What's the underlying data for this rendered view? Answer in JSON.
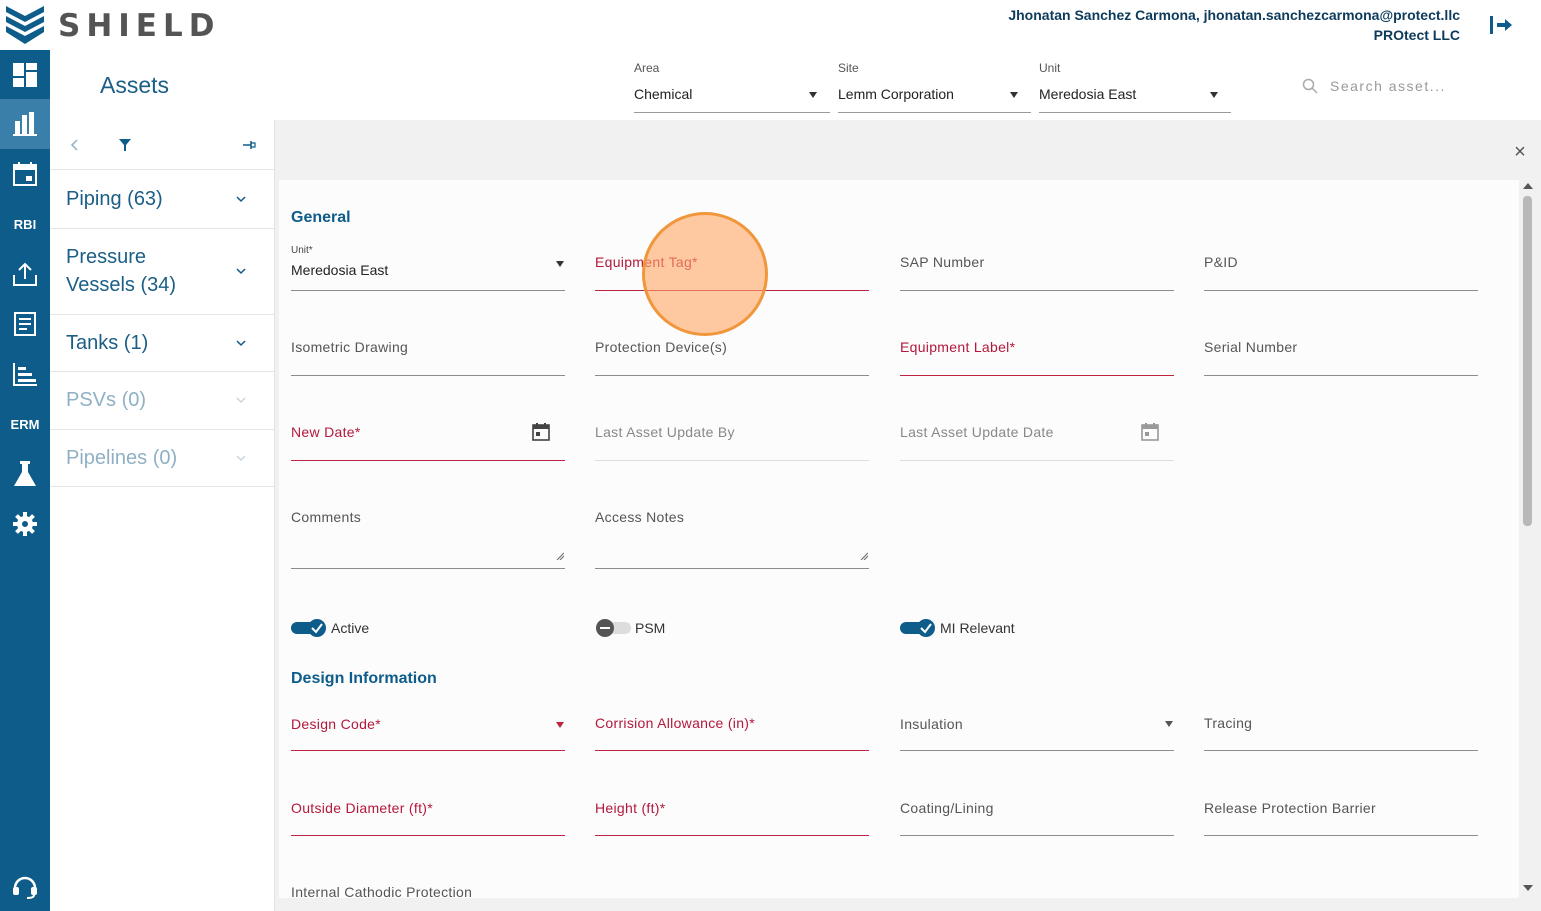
{
  "app": {
    "logo_text": "SHIELD"
  },
  "user": {
    "name_email": "Jhonatan Sanchez Carmona, jhonatan.sanchezcarmona@protect.llc",
    "company": "PROtect LLC"
  },
  "rail": {
    "items": [
      {
        "name": "dashboard-icon"
      },
      {
        "name": "assets-icon"
      },
      {
        "name": "calendar-icon"
      },
      {
        "label": "RBI"
      },
      {
        "name": "upload-icon"
      },
      {
        "name": "report-icon"
      },
      {
        "name": "chart-icon"
      },
      {
        "label": "ERM"
      },
      {
        "name": "lab-flask-icon"
      },
      {
        "name": "settings-gear-icon"
      },
      {
        "name": "support-headset-icon"
      }
    ]
  },
  "header": {
    "title": "Assets",
    "area": {
      "label": "Area",
      "value": "Chemical"
    },
    "site": {
      "label": "Site",
      "value": "Lemm Corporation"
    },
    "unit": {
      "label": "Unit",
      "value": "Meredosia East"
    },
    "search_placeholder": "Search asset..."
  },
  "sidebar": {
    "categories": [
      {
        "label": "Piping (63)"
      },
      {
        "label": "Pressure Vessels (34)",
        "line1": "Pressure",
        "line2": "Vessels (34)"
      },
      {
        "label": "Tanks (1)"
      },
      {
        "label": "PSVs (0)"
      },
      {
        "label": "Pipelines (0)"
      }
    ]
  },
  "form": {
    "general_title": "General",
    "unit_mini": "Unit*",
    "unit_value": "Meredosia East",
    "equipment_tag": "Equipment Tag*",
    "sap_number": "SAP Number",
    "pid": "P&ID",
    "isometric": "Isometric Drawing",
    "protection_devices": "Protection Device(s)",
    "equipment_label": "Equipment Label*",
    "serial_number": "Serial Number",
    "new_date": "New Date*",
    "last_update_by": "Last Asset Update By",
    "last_update_date": "Last Asset Update Date",
    "comments": "Comments",
    "access_notes": "Access Notes",
    "toggle_active": "Active",
    "toggle_psm": "PSM",
    "toggle_mi": "MI Relevant",
    "design_title": "Design Information",
    "design_code": "Design Code*",
    "corrosion_allowance": "Corrision Allowance (in)*",
    "insulation": "Insulation",
    "tracing": "Tracing",
    "outside_diameter": "Outside Diameter (ft)*",
    "height": "Height (ft)*",
    "coating": "Coating/Lining",
    "release_barrier": "Release Protection Barrier",
    "internal_cathodic": "Internal Cathodic Protection"
  },
  "toggles": {
    "active": true,
    "psm": false,
    "mi_relevant": true
  },
  "colors": {
    "primary": "#0d5c8a",
    "required": "#b3183a",
    "accent": "#f0963b"
  }
}
